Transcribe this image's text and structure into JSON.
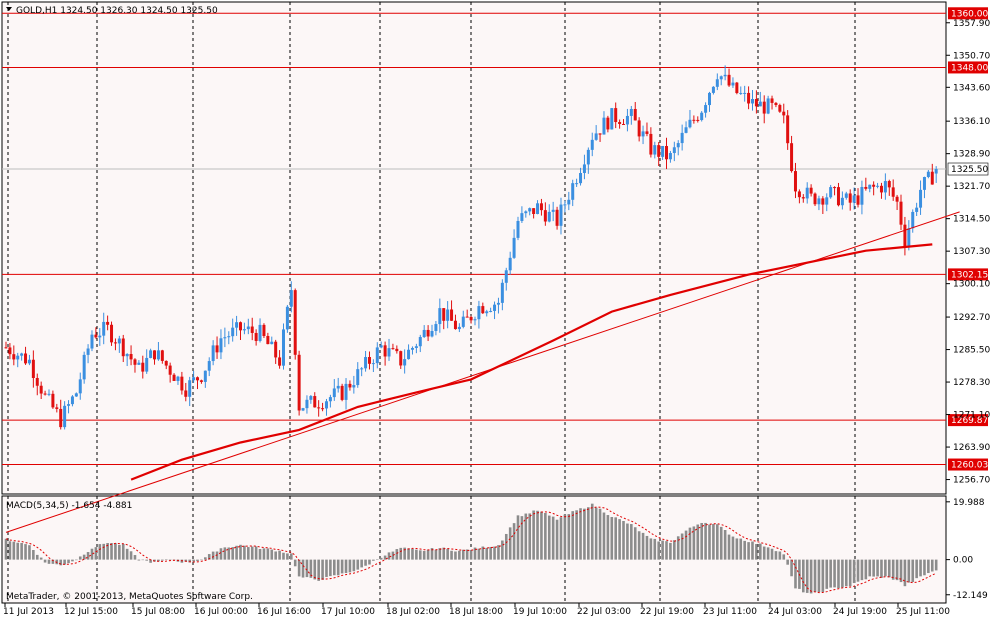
{
  "header": {
    "label": "GOLD,H1  1324.50 1326.30 1324.50 1325.50"
  },
  "macd_header": {
    "label": "MACD(5,34,5) -1.654 -4.881"
  },
  "copyright": "MetaTrader, © 2001-2013, MetaQuotes Software Corp.",
  "colors": {
    "background": "#fcf7f7",
    "bull": "#3b8fe0",
    "bear": "#e01010",
    "red_line": "#e00000",
    "grid": "#000000",
    "histogram": "#8c8c8c",
    "signal": "#e00000",
    "label_bg": "#e00000",
    "price_label_bg": "#ffffff"
  },
  "chart_data": [
    {
      "type": "candlestick",
      "symbol": "GOLD",
      "timeframe": "H1",
      "ohlc_last": {
        "open": 1324.5,
        "high": 1326.3,
        "low": 1324.5,
        "close": 1325.5
      },
      "ylim": [
        1253.5,
        1362.5
      ],
      "y_ticks": [
        "1357.90",
        "1350.70",
        "1343.60",
        "1336.10",
        "1328.90",
        "1321.70",
        "1314.50",
        "1307.30",
        "1300.10",
        "1292.70",
        "1285.50",
        "1278.30",
        "1271.10",
        "1263.90",
        "1256.70"
      ],
      "horizontal_levels": [
        {
          "value": 1360.0,
          "label": "1360.00"
        },
        {
          "value": 1348.0,
          "label": "1348.00"
        },
        {
          "value": 1302.15,
          "label": "1302.15"
        },
        {
          "value": 1269.87,
          "label": "1269.87"
        },
        {
          "value": 1260.03,
          "label": "1260.03"
        }
      ],
      "current_price": {
        "value": 1325.5,
        "label": "1325.50"
      },
      "x_labels": [
        "11 Jul 2013",
        "12 Jul 15:00",
        "15 Jul 08:00",
        "16 Jul 00:00",
        "16 Jul 16:00",
        "17 Jul 10:00",
        "18 Jul 02:00",
        "18 Jul 18:00",
        "19 Jul 10:00",
        "22 Jul 03:00",
        "22 Jul 19:00",
        "23 Jul 11:00",
        "24 Jul 03:00",
        "24 Jul 19:00",
        "25 Jul 11:00"
      ],
      "path": [
        [
          0,
          1286
        ],
        [
          6,
          1283
        ],
        [
          10,
          1275
        ],
        [
          14,
          1270
        ],
        [
          18,
          1276
        ],
        [
          22,
          1289
        ],
        [
          26,
          1290
        ],
        [
          30,
          1286
        ],
        [
          34,
          1281
        ],
        [
          38,
          1285
        ],
        [
          42,
          1281
        ],
        [
          46,
          1277
        ],
        [
          50,
          1280
        ],
        [
          55,
          1288
        ],
        [
          60,
          1290
        ],
        [
          65,
          1289
        ],
        [
          70,
          1283
        ],
        [
          73,
          1299
        ],
        [
          75,
          1273
        ],
        [
          80,
          1274
        ],
        [
          86,
          1276
        ],
        [
          91,
          1281
        ],
        [
          96,
          1286
        ],
        [
          101,
          1283
        ],
        [
          106,
          1288
        ],
        [
          111,
          1294
        ],
        [
          116,
          1290
        ],
        [
          121,
          1295
        ],
        [
          126,
          1296
        ],
        [
          131,
          1314
        ],
        [
          136,
          1317
        ],
        [
          141,
          1314
        ],
        [
          146,
          1324
        ],
        [
          150,
          1333
        ],
        [
          155,
          1337
        ],
        [
          160,
          1337
        ],
        [
          165,
          1330
        ],
        [
          170,
          1328
        ],
        [
          174,
          1334
        ],
        [
          178,
          1339
        ],
        [
          182,
          1347
        ],
        [
          186,
          1343
        ],
        [
          191,
          1340
        ],
        [
          196,
          1339
        ],
        [
          199,
          1336
        ],
        [
          202,
          1322
        ],
        [
          206,
          1319
        ],
        [
          211,
          1320
        ],
        [
          216,
          1318
        ],
        [
          221,
          1321
        ],
        [
          225,
          1322
        ],
        [
          228,
          1318
        ],
        [
          230,
          1310
        ],
        [
          234,
          1321
        ],
        [
          237,
          1324
        ],
        [
          238,
          1325.5
        ]
      ],
      "moving_average": [
        [
          32,
          1256.7
        ],
        [
          45,
          1261.1
        ],
        [
          60,
          1264.9
        ],
        [
          75,
          1267.7
        ],
        [
          90,
          1272.8
        ],
        [
          105,
          1276.0
        ],
        [
          119,
          1278.9
        ],
        [
          140,
          1287.5
        ],
        [
          155,
          1293.9
        ],
        [
          170,
          1297.6
        ],
        [
          190,
          1302.1
        ],
        [
          220,
          1307.4
        ],
        [
          237,
          1308.8
        ]
      ],
      "trendline": [
        [
          0,
          1245
        ],
        [
          244,
          1316
        ]
      ]
    },
    {
      "type": "bar",
      "name": "MACD(5,34,5)",
      "values_current": [
        -1.654,
        -4.881
      ],
      "ylim": [
        -15,
        22
      ],
      "y_ticks": [
        "19.988",
        "0.00",
        "-12.149"
      ],
      "histogram": [
        [
          0,
          7
        ],
        [
          6,
          5
        ],
        [
          10,
          -1
        ],
        [
          14,
          -2
        ],
        [
          18,
          0
        ],
        [
          22,
          4
        ],
        [
          26,
          6
        ],
        [
          30,
          5
        ],
        [
          34,
          0
        ],
        [
          38,
          -1
        ],
        [
          42,
          0
        ],
        [
          46,
          -1
        ],
        [
          50,
          0
        ],
        [
          55,
          4
        ],
        [
          60,
          5
        ],
        [
          65,
          4
        ],
        [
          70,
          3
        ],
        [
          73,
          2
        ],
        [
          75,
          -6
        ],
        [
          80,
          -7
        ],
        [
          86,
          -5
        ],
        [
          91,
          -3
        ],
        [
          96,
          1
        ],
        [
          101,
          4
        ],
        [
          106,
          3
        ],
        [
          111,
          4
        ],
        [
          116,
          3
        ],
        [
          121,
          4
        ],
        [
          126,
          5
        ],
        [
          131,
          15
        ],
        [
          136,
          17
        ],
        [
          141,
          14
        ],
        [
          146,
          17
        ],
        [
          150,
          19
        ],
        [
          155,
          15
        ],
        [
          160,
          12
        ],
        [
          165,
          7
        ],
        [
          170,
          6
        ],
        [
          174,
          10
        ],
        [
          178,
          13
        ],
        [
          182,
          12
        ],
        [
          186,
          8
        ],
        [
          191,
          6
        ],
        [
          196,
          4
        ],
        [
          199,
          2
        ],
        [
          202,
          -10
        ],
        [
          206,
          -12
        ],
        [
          211,
          -10
        ],
        [
          216,
          -9
        ],
        [
          221,
          -6
        ],
        [
          225,
          -6
        ],
        [
          228,
          -7
        ],
        [
          230,
          -9
        ],
        [
          234,
          -6
        ],
        [
          237,
          -4
        ]
      ],
      "signal_lag": 4
    }
  ]
}
